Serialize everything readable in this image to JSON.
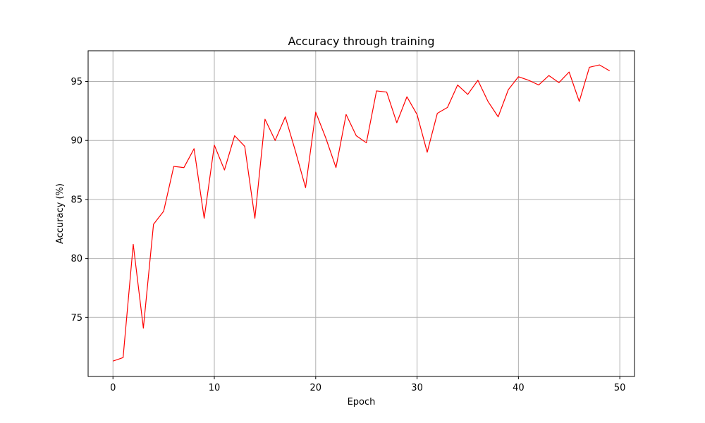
{
  "chart_data": {
    "type": "line",
    "title": "Accuracy through training",
    "xlabel": "Epoch",
    "ylabel": "Accuracy (%)",
    "xlim": [
      -2.45,
      51.45
    ],
    "ylim": [
      70.0,
      97.6
    ],
    "xticks": [
      0,
      10,
      20,
      30,
      40,
      50
    ],
    "yticks": [
      75,
      80,
      85,
      90,
      95
    ],
    "grid": true,
    "series": [
      {
        "color": "#ff0000",
        "x": [
          0,
          1,
          2,
          3,
          4,
          5,
          6,
          7,
          8,
          9,
          10,
          11,
          12,
          13,
          14,
          15,
          16,
          17,
          18,
          19,
          20,
          21,
          22,
          23,
          24,
          25,
          26,
          27,
          28,
          29,
          30,
          31,
          32,
          33,
          34,
          35,
          36,
          37,
          38,
          39,
          40,
          41,
          42,
          43,
          44,
          45,
          46,
          47,
          48,
          49
        ],
        "values": [
          71.3,
          71.6,
          81.2,
          74.1,
          82.9,
          84.0,
          87.8,
          87.7,
          89.3,
          83.4,
          89.6,
          87.5,
          90.4,
          89.5,
          83.4,
          91.8,
          90.0,
          92.0,
          89.1,
          86.0,
          92.4,
          90.2,
          87.7,
          92.2,
          90.4,
          89.8,
          94.2,
          94.1,
          91.5,
          93.7,
          92.2,
          89.0,
          92.3,
          92.8,
          94.7,
          93.9,
          95.1,
          93.3,
          92.0,
          94.3,
          95.4,
          95.1,
          94.7,
          95.5,
          94.9,
          95.8,
          93.3,
          96.2,
          96.4,
          95.9
        ]
      }
    ]
  }
}
